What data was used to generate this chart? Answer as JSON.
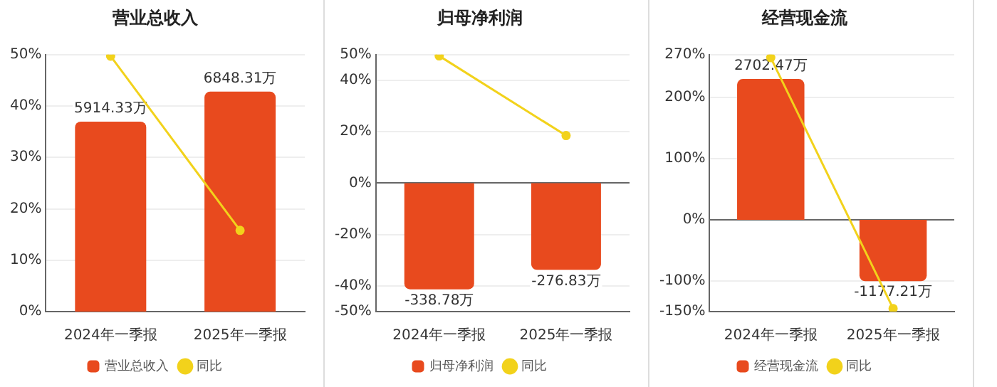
{
  "chart_data": [
    {
      "type": "bar",
      "title": "营业总收入",
      "categories": [
        "2024年一季报",
        "2025年一季报"
      ],
      "series": [
        {
          "name": "营业总收入",
          "axis": "y2",
          "color": "#e84a1e",
          "values": [
            5914.33,
            6848.31
          ],
          "value_labels": [
            "5914.33万",
            "6848.31万"
          ]
        },
        {
          "name": "同比",
          "type": "line",
          "color": "#f2d21b",
          "values": [
            49.7,
            15.8
          ]
        }
      ],
      "ylim": [
        0,
        50
      ],
      "yticks": [
        {
          "value": 0,
          "label": "0%"
        },
        {
          "value": 10,
          "label": "10%"
        },
        {
          "value": 20,
          "label": "20%"
        },
        {
          "value": 30,
          "label": "30%"
        },
        {
          "value": 40,
          "label": "40%"
        },
        {
          "value": 50,
          "label": "50%"
        }
      ],
      "y2lim": [
        0,
        8000
      ],
      "grid": "y",
      "legend": "bottom",
      "marker": "circle"
    },
    {
      "type": "bar",
      "title": "归母净利润",
      "categories": [
        "2024年一季报",
        "2025年一季报"
      ],
      "series": [
        {
          "name": "归母净利润",
          "axis": "y2",
          "color": "#e84a1e",
          "values": [
            -338.78,
            -276.83
          ],
          "value_labels": [
            "-338.78万",
            "-276.83万"
          ]
        },
        {
          "name": "同比",
          "type": "line",
          "color": "#f2d21b",
          "values": [
            49.5,
            18.5
          ]
        }
      ],
      "ylim": [
        -50,
        50
      ],
      "yticks": [
        {
          "value": -50,
          "label": "-50%"
        },
        {
          "value": -40,
          "label": "-40%"
        },
        {
          "value": -20,
          "label": "-20%"
        },
        {
          "value": 0,
          "label": "0%"
        },
        {
          "value": 20,
          "label": "20%"
        },
        {
          "value": 40,
          "label": "40%"
        },
        {
          "value": 50,
          "label": "50%"
        }
      ],
      "y2lim": [
        -410,
        410
      ],
      "grid": "y",
      "legend": "bottom",
      "marker": "circle"
    },
    {
      "type": "bar",
      "title": "经营现金流",
      "categories": [
        "2024年一季报",
        "2025年一季报"
      ],
      "series": [
        {
          "name": "经营现金流",
          "axis": "y2",
          "color": "#e84a1e",
          "values": [
            2702.47,
            -1177.21
          ],
          "value_labels": [
            "2702.47万",
            "-1177.21万"
          ]
        },
        {
          "name": "同比",
          "type": "line",
          "color": "#f2d21b",
          "values": [
            265,
            -145
          ]
        }
      ],
      "ylim": [
        -150,
        270
      ],
      "yticks": [
        {
          "value": -150,
          "label": "-150%"
        },
        {
          "value": -100,
          "label": "-100%"
        },
        {
          "value": 0,
          "label": "0%"
        },
        {
          "value": 100,
          "label": "100%"
        },
        {
          "value": 200,
          "label": "200%"
        },
        {
          "value": 270,
          "label": "270%"
        }
      ],
      "y2lim": [
        -1760,
        3170
      ],
      "grid": "y",
      "legend": "bottom",
      "marker": "circle"
    }
  ]
}
